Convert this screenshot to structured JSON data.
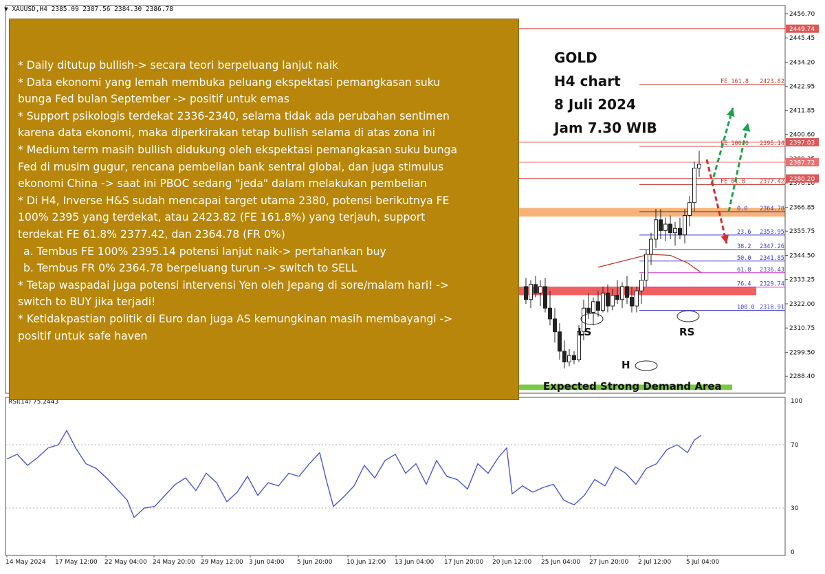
{
  "header": {
    "symbol_line": "▼ XAUUSD,H4  2385.09 2387.56 2384.30 2386.78",
    "indicator_line": "RSI(14) 75.2443"
  },
  "title_block": {
    "line1": "GOLD",
    "line2": "H4 chart",
    "line3": "8 Juli 2024",
    "line4": "Jam 7.30 WIB"
  },
  "notes": [
    "* Daily ditutup bullish-> secara teori berpeluang lanjut naik",
    "* Data ekonomi yang lemah membuka peluang ekspektasi pemangkasan suku",
    "bunga Fed bulan September -> positif untuk emas",
    "* Support psikologis terdekat 2336-2340, selama tidak ada perubahan sentimen",
    "karena data ekonomi, maka diperkirakan tetap bullish selama di atas zona ini",
    "* Medium term masih bullish didukung oleh ekspektasi pemangkasan suku bunga",
    "Fed di musim gugur, rencana pembelian bank sentral global, dan juga stimulus",
    "ekonomi China -> saat ini PBOC sedang \"jeda\" dalam melakukan pembelian",
    "* Di H4, Inverse H&S sudah mencapai target utama 2380, potensi berikutnya FE",
    "100% 2395 yang terdekat, atau 2423.82 (FE 161.8%) yang terjauh, support",
    "terdekat FE 61.8% 2377.42, dan 2364.78 (FR 0%)",
    "  a. Tembus FE 100% 2395.14 potensi lanjut naik-> pertahankan buy",
    "  b. Tembus FR 0% 2364.78 berpeluang turun -> switch to SELL",
    "* Tetap waspadai juga potensi intervensi Yen oleh Jepang di sore/malam hari! ->",
    "switch to BUY jika terjadi!",
    "* Ketidakpastian politik di Euro dan juga AS kemungkinan masih membayangi ->",
    "positif untuk safe haven"
  ],
  "annotations": {
    "ls": "LS",
    "h": "H",
    "rs": "RS",
    "demand_area": "Expected Strong Demand Area"
  },
  "colors": {
    "fe_line": "#c0392b",
    "fr_line": "#3b3bd1",
    "orange_zone": "#f4a460",
    "red_zone": "#ef4444",
    "green_zone": "#7ac943",
    "rsi_line": "#4a55d8",
    "ma_line": "#c0392b",
    "arrow_up": "#1aa34a",
    "arrow_down": "#d32f2f",
    "badge_red": "#e05555",
    "badge_pink": "#ec7070",
    "candle": "#222222"
  },
  "chart_data": [
    {
      "type": "candlestick",
      "title": "XAUUSD,H4",
      "ohlc_last": {
        "open": 2385.09,
        "high": 2387.56,
        "low": 2384.3,
        "close": 2386.78
      },
      "x_tick_labels": [
        "14 May 2024",
        "17 May 12:00",
        "22 May 04:00",
        "24 May 20:00",
        "29 May 12:00",
        "3 Jun 04:00",
        "5 Jun 20:00",
        "10 Jun 12:00",
        "13 Jun 04:00",
        "17 Jun 20:00",
        "20 Jun 12:00",
        "25 Jun 04:00",
        "27 Jun 20:00",
        "2 Jul 12:00",
        "5 Jul 04:00"
      ],
      "y_ticks": [
        2456.7,
        2445.45,
        2434.2,
        2422.95,
        2411.85,
        2400.6,
        2389.35,
        2378.1,
        2366.85,
        2355.75,
        2344.5,
        2333.25,
        2322.0,
        2310.75,
        2299.5,
        2288.4
      ],
      "ylim": [
        2280.5,
        2460.5
      ],
      "price_badges": [
        {
          "value": "2449.74",
          "color": "red"
        },
        {
          "value": "2397.03",
          "color": "red"
        },
        {
          "value": "2387.72",
          "color": "pink"
        },
        {
          "value": "2380.20",
          "color": "red"
        }
      ],
      "fib_extension": [
        {
          "label": "FE 161.8",
          "value": 2423.82,
          "display": "2423.82"
        },
        {
          "label": "FE 100.0",
          "value": 2395.14,
          "display": "2395.14"
        },
        {
          "label": "FE 61.8",
          "value": 2377.42,
          "display": "2377.42"
        }
      ],
      "fib_retracement": [
        {
          "label": "0.0",
          "value": 2364.78,
          "display": "2364.78"
        },
        {
          "label": "23.6",
          "value": 2353.95,
          "display": "2353.95"
        },
        {
          "label": "38.2",
          "value": 2347.26,
          "display": "2347.26"
        },
        {
          "label": "50.0",
          "value": 2341.85,
          "display": "2341.85"
        },
        {
          "label": "61.8",
          "value": 2336.43,
          "display": "2336.43"
        },
        {
          "label": "76.4",
          "value": 2329.74,
          "display": "2329.74"
        },
        {
          "label": "100.0",
          "value": 2318.91,
          "display": "2318.91"
        }
      ],
      "zones": [
        {
          "name": "orange",
          "from": 2362.5,
          "to": 2366.5
        },
        {
          "name": "red",
          "from": 2326.0,
          "to": 2330.0
        },
        {
          "name": "green-demand",
          "from": 2282.0,
          "to": 2284.5
        }
      ],
      "moving_average": [
        [
          870,
          2339
        ],
        [
          920,
          2343
        ],
        [
          945,
          2345
        ],
        [
          975,
          2344.5
        ],
        [
          1000,
          2341
        ],
        [
          1020,
          2336.5
        ]
      ],
      "candles": [
        {
          "i": 765,
          "o": 2330,
          "h": 2334,
          "l": 2322,
          "c": 2324
        },
        {
          "i": 772,
          "o": 2324,
          "h": 2333,
          "l": 2320,
          "c": 2331
        },
        {
          "i": 779,
          "o": 2331,
          "h": 2335,
          "l": 2325,
          "c": 2327
        },
        {
          "i": 786,
          "o": 2327,
          "h": 2333,
          "l": 2321,
          "c": 2330
        },
        {
          "i": 793,
          "o": 2330,
          "h": 2334,
          "l": 2318,
          "c": 2320
        },
        {
          "i": 800,
          "o": 2320,
          "h": 2328,
          "l": 2312,
          "c": 2315
        },
        {
          "i": 807,
          "o": 2315,
          "h": 2320,
          "l": 2304,
          "c": 2309
        },
        {
          "i": 814,
          "o": 2309,
          "h": 2313,
          "l": 2296,
          "c": 2300
        },
        {
          "i": 821,
          "o": 2300,
          "h": 2305,
          "l": 2292,
          "c": 2295
        },
        {
          "i": 828,
          "o": 2295,
          "h": 2301,
          "l": 2293,
          "c": 2298
        },
        {
          "i": 835,
          "o": 2298,
          "h": 2300,
          "l": 2294,
          "c": 2296
        },
        {
          "i": 842,
          "o": 2296,
          "h": 2312,
          "l": 2295,
          "c": 2309
        },
        {
          "i": 849,
          "o": 2309,
          "h": 2324,
          "l": 2305,
          "c": 2320
        },
        {
          "i": 856,
          "o": 2320,
          "h": 2327,
          "l": 2315,
          "c": 2318
        },
        {
          "i": 863,
          "o": 2318,
          "h": 2325,
          "l": 2312,
          "c": 2323
        },
        {
          "i": 870,
          "o": 2323,
          "h": 2328,
          "l": 2316,
          "c": 2319
        },
        {
          "i": 877,
          "o": 2319,
          "h": 2330,
          "l": 2318,
          "c": 2327
        },
        {
          "i": 884,
          "o": 2327,
          "h": 2331,
          "l": 2318,
          "c": 2321
        },
        {
          "i": 891,
          "o": 2321,
          "h": 2329,
          "l": 2319,
          "c": 2326
        },
        {
          "i": 898,
          "o": 2326,
          "h": 2333,
          "l": 2322,
          "c": 2324
        },
        {
          "i": 905,
          "o": 2324,
          "h": 2332,
          "l": 2320,
          "c": 2330
        },
        {
          "i": 912,
          "o": 2330,
          "h": 2335,
          "l": 2322,
          "c": 2325
        },
        {
          "i": 919,
          "o": 2325,
          "h": 2330,
          "l": 2318,
          "c": 2321
        },
        {
          "i": 926,
          "o": 2321,
          "h": 2330,
          "l": 2318,
          "c": 2328
        },
        {
          "i": 933,
          "o": 2328,
          "h": 2336,
          "l": 2322,
          "c": 2333
        },
        {
          "i": 940,
          "o": 2333,
          "h": 2347,
          "l": 2330,
          "c": 2345
        },
        {
          "i": 947,
          "o": 2345,
          "h": 2355,
          "l": 2340,
          "c": 2352
        },
        {
          "i": 954,
          "o": 2352,
          "h": 2366,
          "l": 2348,
          "c": 2361
        },
        {
          "i": 961,
          "o": 2361,
          "h": 2366,
          "l": 2352,
          "c": 2356
        },
        {
          "i": 968,
          "o": 2356,
          "h": 2362,
          "l": 2351,
          "c": 2359
        },
        {
          "i": 975,
          "o": 2359,
          "h": 2363,
          "l": 2352,
          "c": 2355
        },
        {
          "i": 982,
          "o": 2355,
          "h": 2360,
          "l": 2349,
          "c": 2357
        },
        {
          "i": 989,
          "o": 2357,
          "h": 2362,
          "l": 2352,
          "c": 2354
        },
        {
          "i": 996,
          "o": 2354,
          "h": 2366,
          "l": 2350,
          "c": 2363
        },
        {
          "i": 1003,
          "o": 2363,
          "h": 2372,
          "l": 2358,
          "c": 2369
        },
        {
          "i": 1010,
          "o": 2369,
          "h": 2388,
          "l": 2365,
          "c": 2385
        },
        {
          "i": 1017,
          "o": 2385,
          "h": 2393,
          "l": 2381,
          "c": 2386.78
        }
      ],
      "projections": [
        {
          "type": "up",
          "color": "green",
          "from": [
            1035,
            2377.5
          ],
          "to": [
            1066,
            2413
          ]
        },
        {
          "type": "up",
          "color": "green",
          "from": [
            1060,
            2364.8
          ],
          "to": [
            1088,
            2406
          ]
        },
        {
          "type": "down",
          "color": "red",
          "from": [
            1028,
            2389
          ],
          "to": [
            1057,
            2350
          ]
        }
      ]
    },
    {
      "type": "line",
      "title": "RSI(14) 75.2443",
      "y_ticks": [
        100,
        70,
        30,
        0
      ],
      "ylim": [
        0,
        100
      ],
      "x": [
        10,
        25,
        40,
        55,
        70,
        85,
        97,
        110,
        125,
        140,
        155,
        170,
        185,
        195,
        210,
        225,
        240,
        255,
        270,
        285,
        300,
        315,
        330,
        345,
        360,
        375,
        390,
        405,
        420,
        435,
        450,
        465,
        475,
        485,
        500,
        515,
        530,
        545,
        560,
        575,
        590,
        605,
        620,
        635,
        650,
        665,
        680,
        695,
        710,
        725,
        737,
        745,
        760,
        775,
        790,
        805,
        820,
        835,
        850,
        865,
        880,
        895,
        910,
        925,
        940,
        955,
        970,
        985,
        1000,
        1010,
        1020
      ],
      "series": [
        {
          "values": [
            61,
            64,
            57,
            62,
            68,
            70,
            79,
            68,
            58,
            55,
            49,
            42,
            35,
            24,
            30,
            31,
            38,
            45,
            49,
            41,
            52,
            46,
            34,
            40,
            50,
            38,
            46,
            44,
            52,
            50,
            58,
            65,
            47,
            31,
            37,
            44,
            57,
            49,
            60,
            64,
            52,
            58,
            45,
            60,
            50,
            48,
            42,
            58,
            52,
            62,
            68,
            39,
            44,
            40,
            43,
            45,
            35,
            32,
            38,
            48,
            44,
            56,
            52,
            45,
            55,
            58,
            67,
            70,
            65,
            73,
            76
          ]
        }
      ]
    }
  ]
}
